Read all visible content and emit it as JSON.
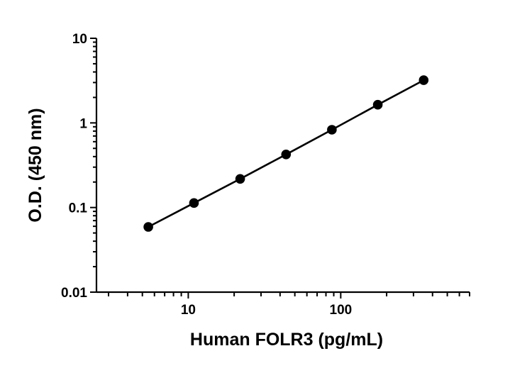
{
  "chart_data": {
    "type": "scatter",
    "xlabel": "Human FOLR3 (pg/mL)",
    "ylabel": "O.D. (450 nm)",
    "x_scale": "log",
    "y_scale": "log",
    "xlim": [
      2.5,
      700
    ],
    "ylim": [
      0.01,
      10
    ],
    "x_ticks": [
      {
        "value": 10,
        "label": "10"
      },
      {
        "value": 100,
        "label": "100"
      }
    ],
    "y_ticks": [
      {
        "value": 0.01,
        "label": "0.01"
      },
      {
        "value": 0.1,
        "label": "0.1"
      },
      {
        "value": 1,
        "label": "1"
      },
      {
        "value": 10,
        "label": "10"
      }
    ],
    "grid": false,
    "legend": "none",
    "series": [
      {
        "x": [
          5.47,
          10.9,
          21.9,
          43.8,
          87.5,
          175,
          350
        ],
        "y": [
          0.059,
          0.113,
          0.218,
          0.424,
          0.83,
          1.64,
          3.2
        ],
        "marker": "circle",
        "fit_line": true,
        "color": "#000000"
      }
    ]
  }
}
